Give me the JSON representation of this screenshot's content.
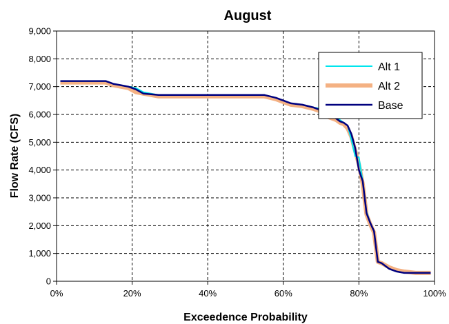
{
  "chart_data": {
    "type": "line",
    "title": "August",
    "xlabel": "Exceedence Probability",
    "ylabel": "Flow Rate (CFS)",
    "xlim": [
      0,
      100
    ],
    "ylim": [
      0,
      9000
    ],
    "x_ticks": [
      0,
      20,
      40,
      60,
      80,
      100
    ],
    "x_tick_labels": [
      "0%",
      "20%",
      "40%",
      "60%",
      "80%",
      "100%"
    ],
    "y_ticks": [
      0,
      1000,
      2000,
      3000,
      4000,
      5000,
      6000,
      7000,
      8000,
      9000
    ],
    "y_tick_labels": [
      "0",
      "1,000",
      "2,000",
      "3,000",
      "4,000",
      "5,000",
      "6,000",
      "7,000",
      "8,000",
      "9,000"
    ],
    "grid": true,
    "legend_position": "top-right",
    "series": [
      {
        "name": "Alt 1",
        "color": "#00E5EE",
        "x": [
          1,
          5,
          10,
          13,
          15,
          17,
          19,
          21,
          23,
          27,
          30,
          35,
          40,
          45,
          50,
          55,
          58,
          60,
          62,
          65,
          68,
          70,
          72,
          74,
          75,
          76,
          77,
          78,
          79,
          80,
          81,
          82,
          83,
          84,
          85,
          86,
          88,
          90,
          92,
          95,
          99
        ],
        "y": [
          7200,
          7200,
          7200,
          7200,
          7100,
          7050,
          7000,
          6950,
          6800,
          6700,
          6700,
          6700,
          6700,
          6700,
          6700,
          6700,
          6600,
          6500,
          6400,
          6350,
          6250,
          6200,
          6100,
          5900,
          5800,
          5700,
          5600,
          5100,
          4500,
          4450,
          3600,
          2500,
          2100,
          1800,
          700,
          650,
          450,
          350,
          300,
          300,
          300
        ]
      },
      {
        "name": "Alt 2",
        "color": "#F4B183",
        "x": [
          1,
          5,
          10,
          13,
          15,
          17,
          19,
          21,
          23,
          27,
          30,
          35,
          40,
          45,
          50,
          55,
          58,
          60,
          62,
          65,
          68,
          70,
          72,
          74,
          75,
          76,
          77,
          78,
          79,
          80,
          81,
          82,
          83,
          84,
          85,
          86,
          88,
          90,
          92,
          95,
          99
        ],
        "y": [
          7150,
          7150,
          7150,
          7150,
          7050,
          7000,
          6950,
          6800,
          6750,
          6650,
          6650,
          6650,
          6650,
          6650,
          6650,
          6650,
          6550,
          6450,
          6350,
          6300,
          6200,
          6100,
          5900,
          5800,
          5700,
          5650,
          5500,
          5200,
          4700,
          4200,
          3500,
          2400,
          2050,
          1750,
          700,
          650,
          500,
          400,
          350,
          300,
          300
        ]
      },
      {
        "name": "Base",
        "color": "#00007F",
        "x": [
          1,
          5,
          10,
          13,
          15,
          17,
          19,
          21,
          23,
          27,
          30,
          35,
          40,
          45,
          50,
          55,
          58,
          60,
          62,
          65,
          68,
          70,
          72,
          74,
          75,
          76,
          77,
          78,
          79,
          80,
          81,
          82,
          83,
          84,
          85,
          86,
          88,
          90,
          92,
          95,
          99
        ],
        "y": [
          7200,
          7200,
          7200,
          7200,
          7100,
          7050,
          7000,
          6900,
          6750,
          6700,
          6700,
          6700,
          6700,
          6700,
          6700,
          6700,
          6600,
          6500,
          6400,
          6350,
          6250,
          6150,
          6000,
          5850,
          5750,
          5700,
          5600,
          5300,
          4800,
          4000,
          3600,
          2450,
          2100,
          1800,
          700,
          650,
          450,
          350,
          300,
          300,
          300
        ]
      }
    ]
  }
}
